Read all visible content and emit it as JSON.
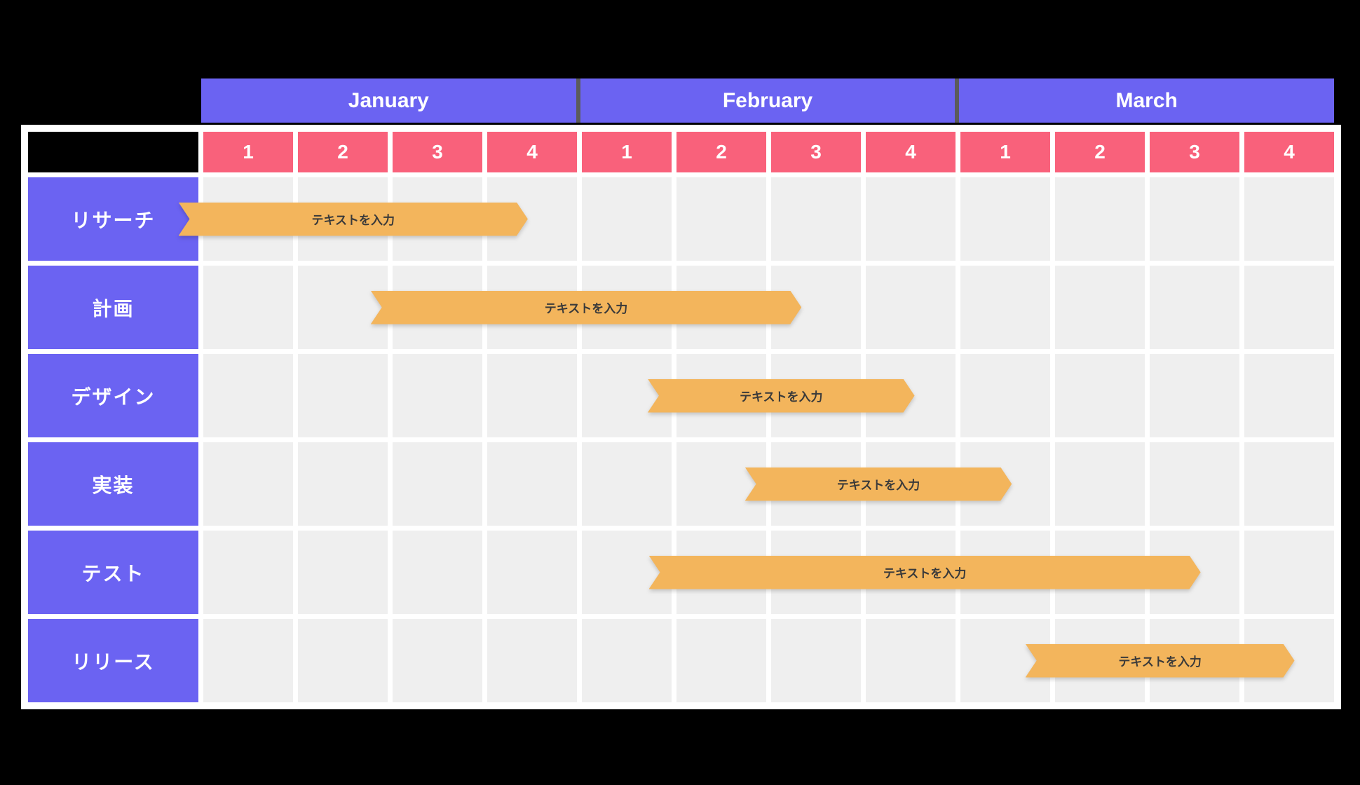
{
  "colors": {
    "background": "#000000",
    "month_header": "#6B63F2",
    "month_gap": "#5B5B5B",
    "week_header": "#F9617B",
    "task_label": "#6B63F2",
    "grid_cell": "#EFEFEF",
    "table_frame": "#FFFFFF",
    "corner_cell": "#000000",
    "bar": "#F3B55C",
    "bar_text_color": "#3A3A3A",
    "header_text_color": "#FFFFFF"
  },
  "months": [
    {
      "label": "January",
      "weeks": [
        "1",
        "2",
        "3",
        "4"
      ]
    },
    {
      "label": "February",
      "weeks": [
        "1",
        "2",
        "3",
        "4"
      ]
    },
    {
      "label": "March",
      "weeks": [
        "1",
        "2",
        "3",
        "4"
      ]
    }
  ],
  "tasks": [
    {
      "label": "リサーチ",
      "bar_text": "テキストを入力",
      "start_pct": -2.2,
      "end_pct": 28.7
    },
    {
      "label": "計画",
      "bar_text": "テキストを入力",
      "start_pct": 14.8,
      "end_pct": 52.9
    },
    {
      "label": "デザイン",
      "bar_text": "テキストを入力",
      "start_pct": 39.3,
      "end_pct": 62.9
    },
    {
      "label": "実装",
      "bar_text": "テキストを入力",
      "start_pct": 47.9,
      "end_pct": 71.5
    },
    {
      "label": "テスト",
      "bar_text": "テキストを入力",
      "start_pct": 39.4,
      "end_pct": 88.2
    },
    {
      "label": "リリース",
      "bar_text": "テキストを入力",
      "start_pct": 72.7,
      "end_pct": 96.5
    }
  ],
  "chart_data": {
    "type": "gantt",
    "title": "",
    "x_axis": {
      "months": [
        "January",
        "February",
        "March"
      ],
      "weeks_per_month": 4,
      "total_weeks": 12,
      "week_tick_labels": [
        "1",
        "2",
        "3",
        "4",
        "1",
        "2",
        "3",
        "4",
        "1",
        "2",
        "3",
        "4"
      ]
    },
    "grid": true,
    "legend": "none",
    "tasks": [
      {
        "name": "リサーチ",
        "bar_label": "テキストを入力",
        "start_week": -0.3,
        "end_week": 3.4
      },
      {
        "name": "計画",
        "bar_label": "テキストを入力",
        "start_week": 1.8,
        "end_week": 6.3
      },
      {
        "name": "デザイン",
        "bar_label": "テキストを入力",
        "start_week": 4.7,
        "end_week": 7.5
      },
      {
        "name": "実装",
        "bar_label": "テキストを入力",
        "start_week": 5.7,
        "end_week": 8.6
      },
      {
        "name": "テスト",
        "bar_label": "テキストを入力",
        "start_week": 4.7,
        "end_week": 10.6
      },
      {
        "name": "リリース",
        "bar_label": "テキストを入力",
        "start_week": 8.7,
        "end_week": 11.6
      }
    ]
  }
}
